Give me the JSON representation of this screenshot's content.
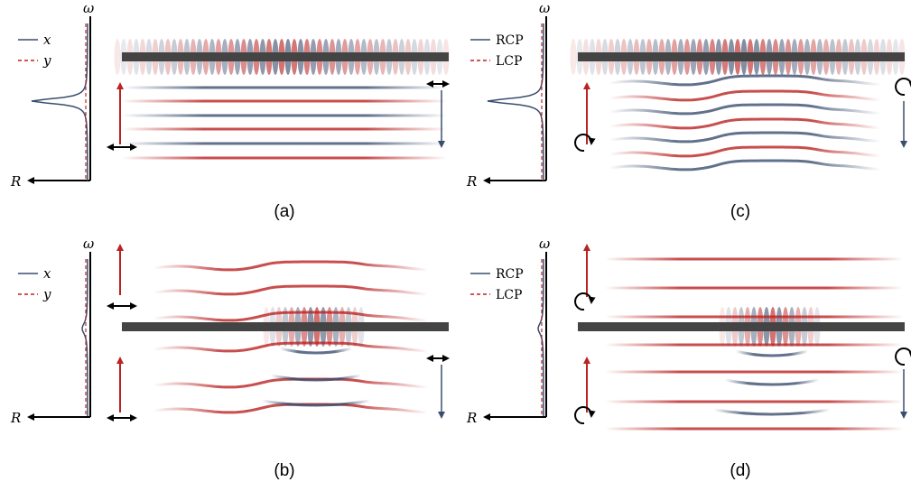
{
  "panels": [
    {
      "label": "(a)",
      "axis_y": "ω",
      "axis_x": "R",
      "legend": [
        "x",
        "y"
      ]
    },
    {
      "label": "(b)",
      "axis_y": "ω",
      "axis_x": "R",
      "legend": [
        "x",
        "y"
      ]
    },
    {
      "label": "(c)",
      "axis_y": "ω",
      "axis_x": "R",
      "legend": [
        "RCP",
        "LCP"
      ]
    },
    {
      "label": "(d)",
      "axis_y": "ω",
      "axis_x": "R",
      "legend": [
        "RCP",
        "LCP"
      ]
    }
  ]
}
